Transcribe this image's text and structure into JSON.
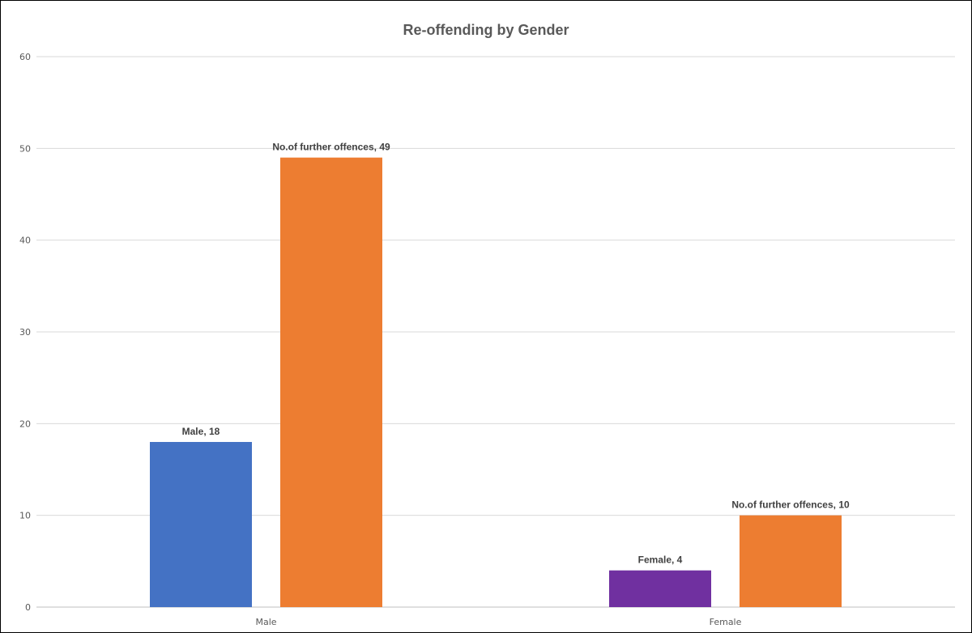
{
  "chart_data": {
    "type": "bar",
    "title": "Re-offending by Gender",
    "xlabel": "",
    "ylabel": "",
    "categories": [
      "Male",
      "Female"
    ],
    "ylim": [
      0,
      60
    ],
    "yticks": [
      0,
      10,
      20,
      30,
      40,
      50,
      60
    ],
    "grid": true,
    "legend": "none",
    "bars": [
      {
        "category": "Male",
        "value": 18,
        "label": "Male, 18",
        "color": "#4472C4"
      },
      {
        "category": "Male",
        "value": 49,
        "label": "No.of further offences, 49",
        "color": "#ED7D31"
      },
      {
        "category": "Female",
        "value": 4,
        "label": "Female, 4",
        "color": "#7030A0"
      },
      {
        "category": "Female",
        "value": 10,
        "label": "No.of further offences, 10",
        "color": "#ED7D31"
      }
    ]
  }
}
